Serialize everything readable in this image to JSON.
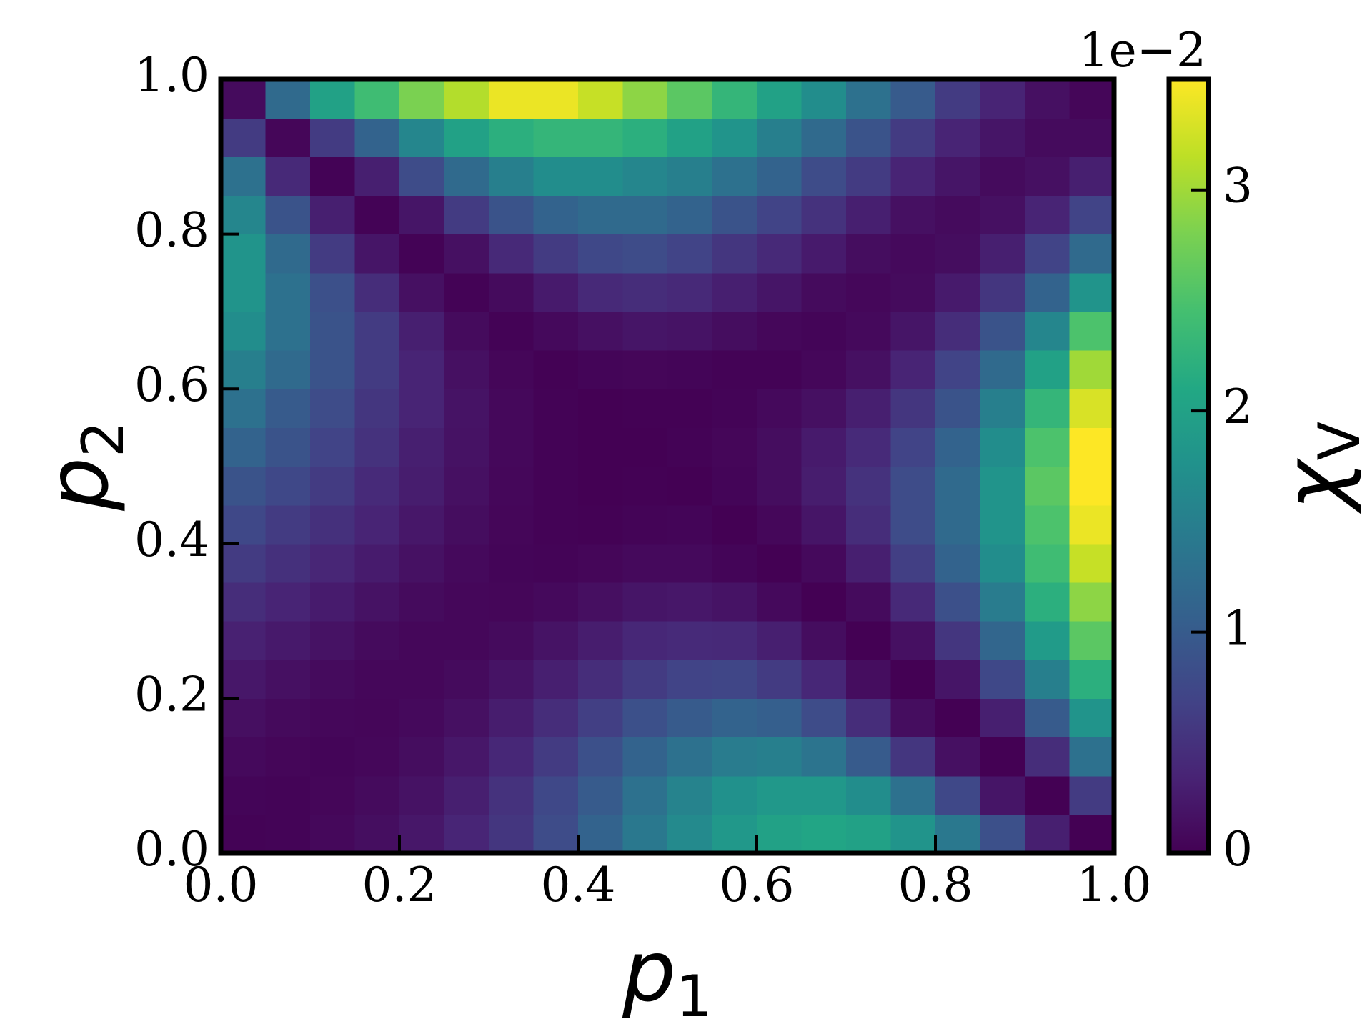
{
  "chart_data": {
    "type": "heatmap",
    "xlabel": "p",
    "xlabel_subscript": "1",
    "ylabel": "p",
    "ylabel_subscript": "2",
    "zlabel": "χ",
    "zlabel_subscript": "V",
    "offset_text": "1e−2",
    "cmap": "viridis",
    "xlim": [
      0,
      1
    ],
    "ylim": [
      0,
      1
    ],
    "xticks": [
      {
        "value": 0,
        "label": "0.0"
      },
      0.2,
      0.4,
      0.6,
      0.8,
      {
        "value": 1,
        "label": "1.0"
      }
    ],
    "yticks": [
      {
        "value": 0,
        "label": "0.0"
      },
      0.2,
      0.4,
      0.6,
      0.8,
      {
        "value": 1,
        "label": "1.0"
      }
    ],
    "clim": [
      0,
      3.5
    ],
    "cticks": [
      0,
      1,
      2,
      3
    ],
    "x": [
      0.025,
      0.075,
      0.125,
      0.175,
      0.225,
      0.275,
      0.325,
      0.375,
      0.425,
      0.475,
      0.525,
      0.575,
      0.625,
      0.675,
      0.725,
      0.775,
      0.825,
      0.875,
      0.925,
      0.975
    ],
    "y": [
      0.025,
      0.075,
      0.125,
      0.175,
      0.225,
      0.275,
      0.325,
      0.375,
      0.425,
      0.475,
      0.525,
      0.575,
      0.625,
      0.675,
      0.725,
      0.775,
      0.825,
      0.875,
      0.925,
      0.975
    ],
    "z": [
      [
        0.02,
        0.03,
        0.07,
        0.13,
        0.22,
        0.36,
        0.55,
        0.8,
        1.1,
        1.4,
        1.65,
        1.85,
        2.0,
        2.05,
        2.0,
        1.8,
        1.4,
        0.85,
        0.3,
        0.0
      ],
      [
        0.04,
        0.03,
        0.05,
        0.1,
        0.17,
        0.3,
        0.5,
        0.75,
        1.0,
        1.3,
        1.55,
        1.75,
        1.85,
        1.85,
        1.7,
        1.3,
        0.75,
        0.2,
        0.0,
        0.6
      ],
      [
        0.08,
        0.05,
        0.04,
        0.06,
        0.12,
        0.22,
        0.38,
        0.6,
        0.85,
        1.1,
        1.3,
        1.45,
        1.5,
        1.35,
        1.0,
        0.55,
        0.15,
        0.0,
        0.45,
        1.3
      ],
      [
        0.14,
        0.09,
        0.06,
        0.05,
        0.08,
        0.15,
        0.28,
        0.45,
        0.65,
        0.85,
        1.0,
        1.1,
        1.05,
        0.8,
        0.45,
        0.12,
        0.0,
        0.3,
        1.0,
        1.8
      ],
      [
        0.22,
        0.15,
        0.1,
        0.06,
        0.06,
        0.1,
        0.18,
        0.3,
        0.45,
        0.6,
        0.7,
        0.72,
        0.6,
        0.38,
        0.12,
        0.0,
        0.2,
        0.75,
        1.5,
        2.2
      ],
      [
        0.32,
        0.24,
        0.17,
        0.1,
        0.06,
        0.06,
        0.1,
        0.18,
        0.28,
        0.38,
        0.42,
        0.4,
        0.3,
        0.12,
        0.0,
        0.15,
        0.55,
        1.15,
        1.9,
        2.6
      ],
      [
        0.45,
        0.35,
        0.26,
        0.17,
        0.1,
        0.06,
        0.05,
        0.08,
        0.14,
        0.2,
        0.22,
        0.18,
        0.08,
        0.0,
        0.1,
        0.4,
        0.85,
        1.45,
        2.2,
        2.9
      ],
      [
        0.6,
        0.48,
        0.37,
        0.26,
        0.16,
        0.08,
        0.04,
        0.03,
        0.05,
        0.08,
        0.08,
        0.04,
        0.0,
        0.08,
        0.3,
        0.65,
        1.1,
        1.7,
        2.4,
        3.2
      ],
      [
        0.75,
        0.6,
        0.48,
        0.35,
        0.22,
        0.12,
        0.05,
        0.02,
        0.01,
        0.03,
        0.04,
        0.0,
        0.06,
        0.2,
        0.45,
        0.8,
        1.2,
        1.8,
        2.5,
        3.4
      ],
      [
        0.9,
        0.75,
        0.6,
        0.42,
        0.28,
        0.15,
        0.06,
        0.02,
        0.0,
        0.01,
        0.0,
        0.04,
        0.12,
        0.28,
        0.5,
        0.8,
        1.2,
        1.8,
        2.6,
        3.5
      ],
      [
        1.1,
        0.9,
        0.7,
        0.5,
        0.3,
        0.17,
        0.07,
        0.02,
        0.0,
        0.0,
        0.02,
        0.05,
        0.12,
        0.25,
        0.42,
        0.7,
        1.1,
        1.7,
        2.5,
        3.5
      ],
      [
        1.3,
        1.0,
        0.8,
        0.55,
        0.35,
        0.18,
        0.07,
        0.02,
        0.0,
        0.01,
        0.01,
        0.03,
        0.08,
        0.15,
        0.3,
        0.55,
        0.9,
        1.5,
        2.3,
        3.3
      ],
      [
        1.5,
        1.2,
        0.9,
        0.6,
        0.35,
        0.15,
        0.05,
        0.01,
        0.04,
        0.05,
        0.04,
        0.02,
        0.02,
        0.06,
        0.15,
        0.35,
        0.7,
        1.2,
        2.0,
        3.0
      ],
      [
        1.7,
        1.3,
        0.9,
        0.6,
        0.3,
        0.1,
        0.02,
        0.08,
        0.15,
        0.2,
        0.18,
        0.12,
        0.06,
        0.04,
        0.08,
        0.2,
        0.45,
        0.9,
        1.6,
        2.5
      ],
      [
        1.8,
        1.3,
        0.85,
        0.45,
        0.15,
        0.02,
        0.1,
        0.25,
        0.4,
        0.45,
        0.4,
        0.3,
        0.2,
        0.1,
        0.06,
        0.1,
        0.25,
        0.55,
        1.1,
        1.8
      ],
      [
        1.8,
        1.2,
        0.6,
        0.2,
        0.02,
        0.15,
        0.4,
        0.6,
        0.75,
        0.8,
        0.7,
        0.55,
        0.4,
        0.25,
        0.12,
        0.08,
        0.12,
        0.3,
        0.7,
        1.2
      ],
      [
        1.6,
        0.9,
        0.3,
        0.02,
        0.2,
        0.6,
        0.9,
        1.1,
        1.2,
        1.2,
        1.1,
        0.9,
        0.7,
        0.5,
        0.3,
        0.15,
        0.1,
        0.15,
        0.35,
        0.7
      ],
      [
        1.3,
        0.4,
        0.02,
        0.3,
        0.8,
        1.2,
        1.5,
        1.7,
        1.7,
        1.6,
        1.5,
        1.3,
        1.1,
        0.8,
        0.6,
        0.35,
        0.2,
        0.1,
        0.15,
        0.3
      ],
      [
        0.6,
        0.05,
        0.6,
        1.1,
        1.6,
        2.0,
        2.2,
        2.3,
        2.3,
        2.2,
        2.0,
        1.8,
        1.5,
        1.2,
        0.9,
        0.6,
        0.35,
        0.2,
        0.1,
        0.1
      ],
      [
        0.1,
        1.2,
        2.0,
        2.4,
        2.8,
        3.1,
        3.4,
        3.4,
        3.2,
        2.9,
        2.6,
        2.3,
        2.0,
        1.7,
        1.3,
        1.0,
        0.6,
        0.35,
        0.15,
        0.05
      ]
    ]
  }
}
